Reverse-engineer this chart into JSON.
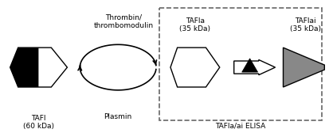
{
  "bg_color": "#ffffff",
  "fig_width": 4.13,
  "fig_height": 1.68,
  "dpi": 100,
  "tafi_label": "TAFI\n(60 kDa)",
  "tafIa_label": "TAFIa\n(35 kDa)",
  "tafIai_label": "TAFIai\n(35 kDa)",
  "thrombin_label": "Thrombin/\nthrombomodulin",
  "plasmin_label": "Plasmin",
  "elisa_label": "TAFIa/ai ELISA",
  "font_size": 6.5,
  "gray_color": "#888888",
  "dark_gray": "#555555"
}
